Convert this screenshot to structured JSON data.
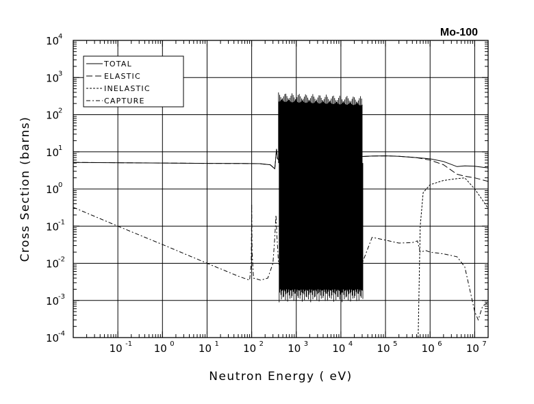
{
  "chart_data": {
    "type": "line",
    "title": "Mo-100",
    "xlabel": "Neutron Energy ( eV)",
    "ylabel": "Cross Section (barns)",
    "x_scale": "log",
    "y_scale": "log",
    "xlim": [
      0.01,
      20000000
    ],
    "ylim": [
      0.0001,
      10000
    ],
    "x_ticks": [
      {
        "base": "10",
        "exp": "-1"
      },
      {
        "base": "10",
        "exp": "0"
      },
      {
        "base": "10",
        "exp": "1"
      },
      {
        "base": "10",
        "exp": "2"
      },
      {
        "base": "10",
        "exp": "3"
      },
      {
        "base": "10",
        "exp": "4"
      },
      {
        "base": "10",
        "exp": "5"
      },
      {
        "base": "10",
        "exp": "6"
      },
      {
        "base": "10",
        "exp": "7"
      }
    ],
    "y_ticks": [
      {
        "base": "10",
        "exp": "-4"
      },
      {
        "base": "10",
        "exp": "-3"
      },
      {
        "base": "10",
        "exp": "-2"
      },
      {
        "base": "10",
        "exp": "-1"
      },
      {
        "base": "10",
        "exp": "0"
      },
      {
        "base": "10",
        "exp": "1"
      },
      {
        "base": "10",
        "exp": "2"
      },
      {
        "base": "10",
        "exp": "3"
      },
      {
        "base": "10",
        "exp": "4"
      }
    ],
    "grid": true,
    "legend_position": "top-left",
    "series": [
      {
        "name": "TOTAL",
        "dash": "solid",
        "x": [
          0.01,
          1,
          10,
          60,
          150,
          260,
          330,
          360,
          380,
          450,
          700,
          1000,
          2000,
          5000,
          10000,
          20000,
          30000,
          50000,
          100000,
          200000,
          500000,
          1000000,
          2000000,
          4000000,
          6000000,
          10000000,
          20000000
        ],
        "y": [
          5.2,
          5.0,
          4.9,
          4.85,
          4.8,
          4.5,
          3.5,
          12,
          6.5,
          5.5,
          5.2,
          5.0,
          5.0,
          5.0,
          5.5,
          6.0,
          7.5,
          7.7,
          7.8,
          7.6,
          7.0,
          6.5,
          5.5,
          4.0,
          4.2,
          4.1,
          3.7
        ]
      },
      {
        "name": "ELASTIC",
        "dash": "long-dash",
        "x": [
          0.01,
          1,
          10,
          60,
          150,
          260,
          330,
          360,
          380,
          450,
          700,
          1000,
          2000,
          5000,
          10000,
          20000,
          30000,
          50000,
          100000,
          200000,
          500000,
          1000000,
          2000000,
          4000000,
          6000000,
          10000000,
          20000000
        ],
        "y": [
          5.2,
          5.0,
          4.9,
          4.85,
          4.8,
          4.5,
          3.5,
          12,
          6.5,
          5.5,
          5.2,
          5.0,
          5.0,
          5.0,
          5.5,
          6.0,
          7.5,
          7.7,
          7.8,
          7.6,
          7.0,
          6.0,
          4.5,
          2.5,
          2.2,
          2.0,
          1.6
        ]
      },
      {
        "name": "INELASTIC",
        "dash": "short-dash",
        "x": [
          540000,
          560000,
          600000,
          700000,
          1000000,
          2000000,
          4000000,
          6000000,
          10000000,
          15000000,
          20000000
        ],
        "y": [
          0.0001,
          0.001,
          0.1,
          0.8,
          1.3,
          1.7,
          1.9,
          2.0,
          1.0,
          0.5,
          0.3
        ]
      },
      {
        "name": "CAPTURE",
        "dash": "dash-dot",
        "x": [
          0.01,
          0.1,
          1,
          10,
          50,
          90,
          98,
          100,
          102,
          110,
          160,
          230,
          300,
          330,
          350,
          370,
          400,
          700,
          1000,
          2000,
          5000,
          10000,
          20000,
          30000,
          50000,
          100000,
          200000,
          400000,
          520000,
          600000,
          800000,
          1000000,
          2000000,
          4000000,
          6000000,
          10000000,
          12000000,
          15000000,
          20000000
        ],
        "y": [
          0.32,
          0.1,
          0.032,
          0.01,
          0.0045,
          0.0035,
          0.01,
          0.4,
          0.02,
          0.004,
          0.0035,
          0.004,
          0.01,
          0.05,
          0.2,
          0.05,
          0.01,
          0.002,
          0.002,
          0.002,
          0.002,
          0.002,
          0.002,
          0.01,
          0.05,
          0.042,
          0.035,
          0.036,
          0.04,
          0.02,
          0.022,
          0.02,
          0.018,
          0.015,
          0.008,
          0.0005,
          0.0003,
          0.0007,
          0.0009
        ]
      }
    ],
    "resonance_region": {
      "x_start": 400,
      "x_end": 30000
    }
  }
}
